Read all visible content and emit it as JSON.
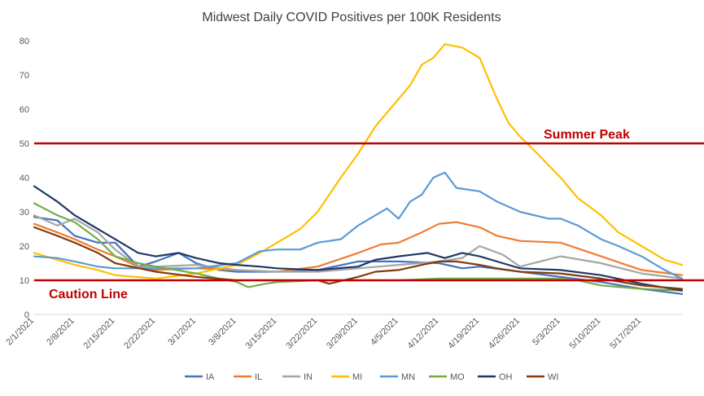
{
  "chart_data": {
    "type": "line",
    "title": "Midwest Daily COVID Positives per 100K Residents",
    "xlabel": "",
    "ylabel": "",
    "ylim": [
      0,
      80
    ],
    "yticks": [
      0,
      10,
      20,
      30,
      40,
      50,
      60,
      70,
      80
    ],
    "x_start": "2021-02-01",
    "x_end": "2021-05-24",
    "x_tick_labels": [
      "2/1/2021",
      "2/8/2021",
      "2/15/2021",
      "2/22/2021",
      "3/1/2021",
      "3/8/2021",
      "3/15/2021",
      "3/22/2021",
      "3/29/2021",
      "4/5/2021",
      "4/12/2021",
      "4/19/2021",
      "4/26/2021",
      "5/3/2021",
      "5/10/2021",
      "5/17/2021"
    ],
    "grid": false,
    "legend_position": "bottom",
    "reference_lines": [
      {
        "label": "Summer Peak",
        "value": 50,
        "color": "#c00000"
      },
      {
        "label": "Caution Line",
        "value": 10,
        "color": "#c00000"
      }
    ],
    "series": [
      {
        "name": "IA",
        "color": "#4472c4",
        "points": [
          [
            "2021-02-01",
            28.5
          ],
          [
            "2021-02-05",
            27.5
          ],
          [
            "2021-02-08",
            23
          ],
          [
            "2021-02-12",
            21
          ],
          [
            "2021-02-15",
            21
          ],
          [
            "2021-02-19",
            14
          ],
          [
            "2021-02-22",
            15.5
          ],
          [
            "2021-02-26",
            18
          ],
          [
            "2021-03-01",
            15
          ],
          [
            "2021-03-05",
            13
          ],
          [
            "2021-03-08",
            12.5
          ],
          [
            "2021-03-15",
            12.5
          ],
          [
            "2021-03-22",
            13
          ],
          [
            "2021-03-29",
            15.5
          ],
          [
            "2021-04-05",
            15.5
          ],
          [
            "2021-04-12",
            15
          ],
          [
            "2021-04-16",
            13.5
          ],
          [
            "2021-04-19",
            14
          ],
          [
            "2021-04-26",
            12.5
          ],
          [
            "2021-05-03",
            11
          ],
          [
            "2021-05-10",
            9.5
          ],
          [
            "2021-05-17",
            7.5
          ],
          [
            "2021-05-24",
            6
          ]
        ]
      },
      {
        "name": "IL",
        "color": "#ed7d31",
        "points": [
          [
            "2021-02-01",
            26.5
          ],
          [
            "2021-02-05",
            24
          ],
          [
            "2021-02-08",
            22
          ],
          [
            "2021-02-12",
            19
          ],
          [
            "2021-02-15",
            17
          ],
          [
            "2021-02-19",
            14
          ],
          [
            "2021-02-22",
            13
          ],
          [
            "2021-03-01",
            13.5
          ],
          [
            "2021-03-08",
            13
          ],
          [
            "2021-03-15",
            12.5
          ],
          [
            "2021-03-22",
            14
          ],
          [
            "2021-03-29",
            18
          ],
          [
            "2021-04-02",
            20.5
          ],
          [
            "2021-04-05",
            21
          ],
          [
            "2021-04-09",
            24
          ],
          [
            "2021-04-12",
            26.5
          ],
          [
            "2021-04-15",
            27
          ],
          [
            "2021-04-19",
            25.5
          ],
          [
            "2021-04-22",
            23
          ],
          [
            "2021-04-26",
            21.5
          ],
          [
            "2021-05-03",
            21
          ],
          [
            "2021-05-10",
            17
          ],
          [
            "2021-05-17",
            13
          ],
          [
            "2021-05-24",
            11.5
          ]
        ]
      },
      {
        "name": "IN",
        "color": "#a5a5a5",
        "points": [
          [
            "2021-02-01",
            29
          ],
          [
            "2021-02-05",
            26
          ],
          [
            "2021-02-08",
            28
          ],
          [
            "2021-02-12",
            24
          ],
          [
            "2021-02-15",
            19
          ],
          [
            "2021-02-19",
            14
          ],
          [
            "2021-02-22",
            14
          ],
          [
            "2021-03-01",
            14.5
          ],
          [
            "2021-03-08",
            13
          ],
          [
            "2021-03-15",
            12.5
          ],
          [
            "2021-03-22",
            12.5
          ],
          [
            "2021-03-29",
            13.5
          ],
          [
            "2021-04-05",
            14.5
          ],
          [
            "2021-04-12",
            15.5
          ],
          [
            "2021-04-16",
            16.5
          ],
          [
            "2021-04-19",
            20
          ],
          [
            "2021-04-23",
            17.5
          ],
          [
            "2021-04-26",
            14
          ],
          [
            "2021-05-03",
            17
          ],
          [
            "2021-05-10",
            15
          ],
          [
            "2021-05-17",
            12
          ],
          [
            "2021-05-24",
            10.5
          ]
        ]
      },
      {
        "name": "MI",
        "color": "#ffc000",
        "points": [
          [
            "2021-02-01",
            18
          ],
          [
            "2021-02-05",
            16
          ],
          [
            "2021-02-08",
            14.5
          ],
          [
            "2021-02-12",
            13
          ],
          [
            "2021-02-15",
            11.5
          ],
          [
            "2021-02-22",
            10.5
          ],
          [
            "2021-03-01",
            12
          ],
          [
            "2021-03-08",
            14.5
          ],
          [
            "2021-03-12",
            18
          ],
          [
            "2021-03-15",
            21
          ],
          [
            "2021-03-19",
            25
          ],
          [
            "2021-03-22",
            30
          ],
          [
            "2021-03-26",
            40
          ],
          [
            "2021-03-29",
            47
          ],
          [
            "2021-04-01",
            55
          ],
          [
            "2021-04-03",
            59
          ],
          [
            "2021-04-05",
            63
          ],
          [
            "2021-04-07",
            67
          ],
          [
            "2021-04-09",
            73
          ],
          [
            "2021-04-11",
            75
          ],
          [
            "2021-04-13",
            79
          ],
          [
            "2021-04-16",
            78
          ],
          [
            "2021-04-19",
            75
          ],
          [
            "2021-04-22",
            63
          ],
          [
            "2021-04-24",
            56
          ],
          [
            "2021-04-26",
            52
          ],
          [
            "2021-04-29",
            47
          ],
          [
            "2021-05-03",
            40
          ],
          [
            "2021-05-06",
            34
          ],
          [
            "2021-05-10",
            29
          ],
          [
            "2021-05-13",
            24
          ],
          [
            "2021-05-17",
            20
          ],
          [
            "2021-05-21",
            16
          ],
          [
            "2021-05-24",
            14.5
          ]
        ]
      },
      {
        "name": "MN",
        "color": "#5b9bd5",
        "points": [
          [
            "2021-02-01",
            17
          ],
          [
            "2021-02-05",
            16.5
          ],
          [
            "2021-02-08",
            15.5
          ],
          [
            "2021-02-12",
            14
          ],
          [
            "2021-02-15",
            13.5
          ],
          [
            "2021-02-22",
            13.5
          ],
          [
            "2021-03-01",
            13.5
          ],
          [
            "2021-03-08",
            15
          ],
          [
            "2021-03-12",
            18.5
          ],
          [
            "2021-03-15",
            19
          ],
          [
            "2021-03-19",
            19
          ],
          [
            "2021-03-22",
            21
          ],
          [
            "2021-03-26",
            22
          ],
          [
            "2021-03-29",
            26
          ],
          [
            "2021-04-01",
            29
          ],
          [
            "2021-04-03",
            31
          ],
          [
            "2021-04-05",
            28
          ],
          [
            "2021-04-07",
            33
          ],
          [
            "2021-04-09",
            35
          ],
          [
            "2021-04-11",
            40
          ],
          [
            "2021-04-13",
            41.5
          ],
          [
            "2021-04-15",
            37
          ],
          [
            "2021-04-19",
            36
          ],
          [
            "2021-04-22",
            33
          ],
          [
            "2021-04-26",
            30
          ],
          [
            "2021-05-01",
            28
          ],
          [
            "2021-05-03",
            28
          ],
          [
            "2021-05-06",
            26
          ],
          [
            "2021-05-10",
            22
          ],
          [
            "2021-05-13",
            20
          ],
          [
            "2021-05-17",
            17
          ],
          [
            "2021-05-21",
            13
          ],
          [
            "2021-05-24",
            10.5
          ]
        ]
      },
      {
        "name": "MO",
        "color": "#70ad47",
        "points": [
          [
            "2021-02-01",
            32.5
          ],
          [
            "2021-02-05",
            29
          ],
          [
            "2021-02-08",
            27
          ],
          [
            "2021-02-12",
            22
          ],
          [
            "2021-02-15",
            17
          ],
          [
            "2021-02-19",
            15
          ],
          [
            "2021-02-22",
            14
          ],
          [
            "2021-03-01",
            12
          ],
          [
            "2021-03-05",
            10.5
          ],
          [
            "2021-03-08",
            9.5
          ],
          [
            "2021-03-10",
            8
          ],
          [
            "2021-03-13",
            9
          ],
          [
            "2021-03-15",
            9.5
          ],
          [
            "2021-03-22",
            10
          ],
          [
            "2021-03-29",
            10
          ],
          [
            "2021-04-05",
            10
          ],
          [
            "2021-04-12",
            10.5
          ],
          [
            "2021-04-19",
            10.5
          ],
          [
            "2021-04-26",
            10.5
          ],
          [
            "2021-05-03",
            10.5
          ],
          [
            "2021-05-06",
            10
          ],
          [
            "2021-05-10",
            8.5
          ],
          [
            "2021-05-17",
            7.5
          ],
          [
            "2021-05-24",
            7
          ]
        ]
      },
      {
        "name": "OH",
        "color": "#203864",
        "points": [
          [
            "2021-02-01",
            37.5
          ],
          [
            "2021-02-05",
            33
          ],
          [
            "2021-02-08",
            29
          ],
          [
            "2021-02-12",
            25
          ],
          [
            "2021-02-15",
            22
          ],
          [
            "2021-02-19",
            18
          ],
          [
            "2021-02-22",
            17
          ],
          [
            "2021-02-26",
            18
          ],
          [
            "2021-03-01",
            16.5
          ],
          [
            "2021-03-05",
            15
          ],
          [
            "2021-03-08",
            14.5
          ],
          [
            "2021-03-12",
            14
          ],
          [
            "2021-03-15",
            13.5
          ],
          [
            "2021-03-22",
            13
          ],
          [
            "2021-03-29",
            14
          ],
          [
            "2021-04-01",
            16
          ],
          [
            "2021-04-05",
            17
          ],
          [
            "2021-04-10",
            18
          ],
          [
            "2021-04-13",
            16.5
          ],
          [
            "2021-04-16",
            18
          ],
          [
            "2021-04-19",
            17
          ],
          [
            "2021-04-23",
            15
          ],
          [
            "2021-04-26",
            13.5
          ],
          [
            "2021-05-03",
            13
          ],
          [
            "2021-05-10",
            11.5
          ],
          [
            "2021-05-17",
            9
          ],
          [
            "2021-05-24",
            7
          ]
        ]
      },
      {
        "name": "WI",
        "color": "#843c0c",
        "points": [
          [
            "2021-02-01",
            25.5
          ],
          [
            "2021-02-05",
            23
          ],
          [
            "2021-02-08",
            21
          ],
          [
            "2021-02-12",
            18
          ],
          [
            "2021-02-15",
            15
          ],
          [
            "2021-02-22",
            12.5
          ],
          [
            "2021-03-01",
            11
          ],
          [
            "2021-03-08",
            10
          ],
          [
            "2021-03-15",
            10
          ],
          [
            "2021-03-22",
            10
          ],
          [
            "2021-03-24",
            9
          ],
          [
            "2021-03-29",
            11
          ],
          [
            "2021-04-01",
            12.5
          ],
          [
            "2021-04-05",
            13
          ],
          [
            "2021-04-09",
            14.5
          ],
          [
            "2021-04-12",
            15.5
          ],
          [
            "2021-04-15",
            15.5
          ],
          [
            "2021-04-19",
            14.5
          ],
          [
            "2021-04-22",
            13.5
          ],
          [
            "2021-04-26",
            12.5
          ],
          [
            "2021-05-03",
            12
          ],
          [
            "2021-05-10",
            10.5
          ],
          [
            "2021-05-17",
            8.5
          ],
          [
            "2021-05-24",
            7.5
          ]
        ]
      }
    ]
  }
}
